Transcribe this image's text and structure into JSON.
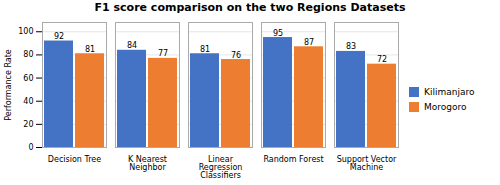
{
  "chart_data": {
    "type": "bar",
    "title": "F1 score comparison on the two Regions Datasets",
    "ylabel": "Performance Rate",
    "categories": [
      "Decision Tree",
      "K Nearest\nNeighbor",
      "Linear\nRegression\nClassifiers",
      "Random Forest",
      "Support Vector\nMachine"
    ],
    "series": [
      {
        "name": "Kilimanjaro",
        "color": "#4472C4",
        "values": [
          92,
          84,
          81,
          95,
          83
        ]
      },
      {
        "name": "Morogoro",
        "color": "#ED7D31",
        "values": [
          81,
          77,
          76,
          87,
          72
        ]
      }
    ],
    "ylim": [
      0,
      108
    ],
    "yticks": [
      0,
      20,
      40,
      60,
      80,
      100
    ],
    "grid": true,
    "legend": "right",
    "data_labels": true
  }
}
